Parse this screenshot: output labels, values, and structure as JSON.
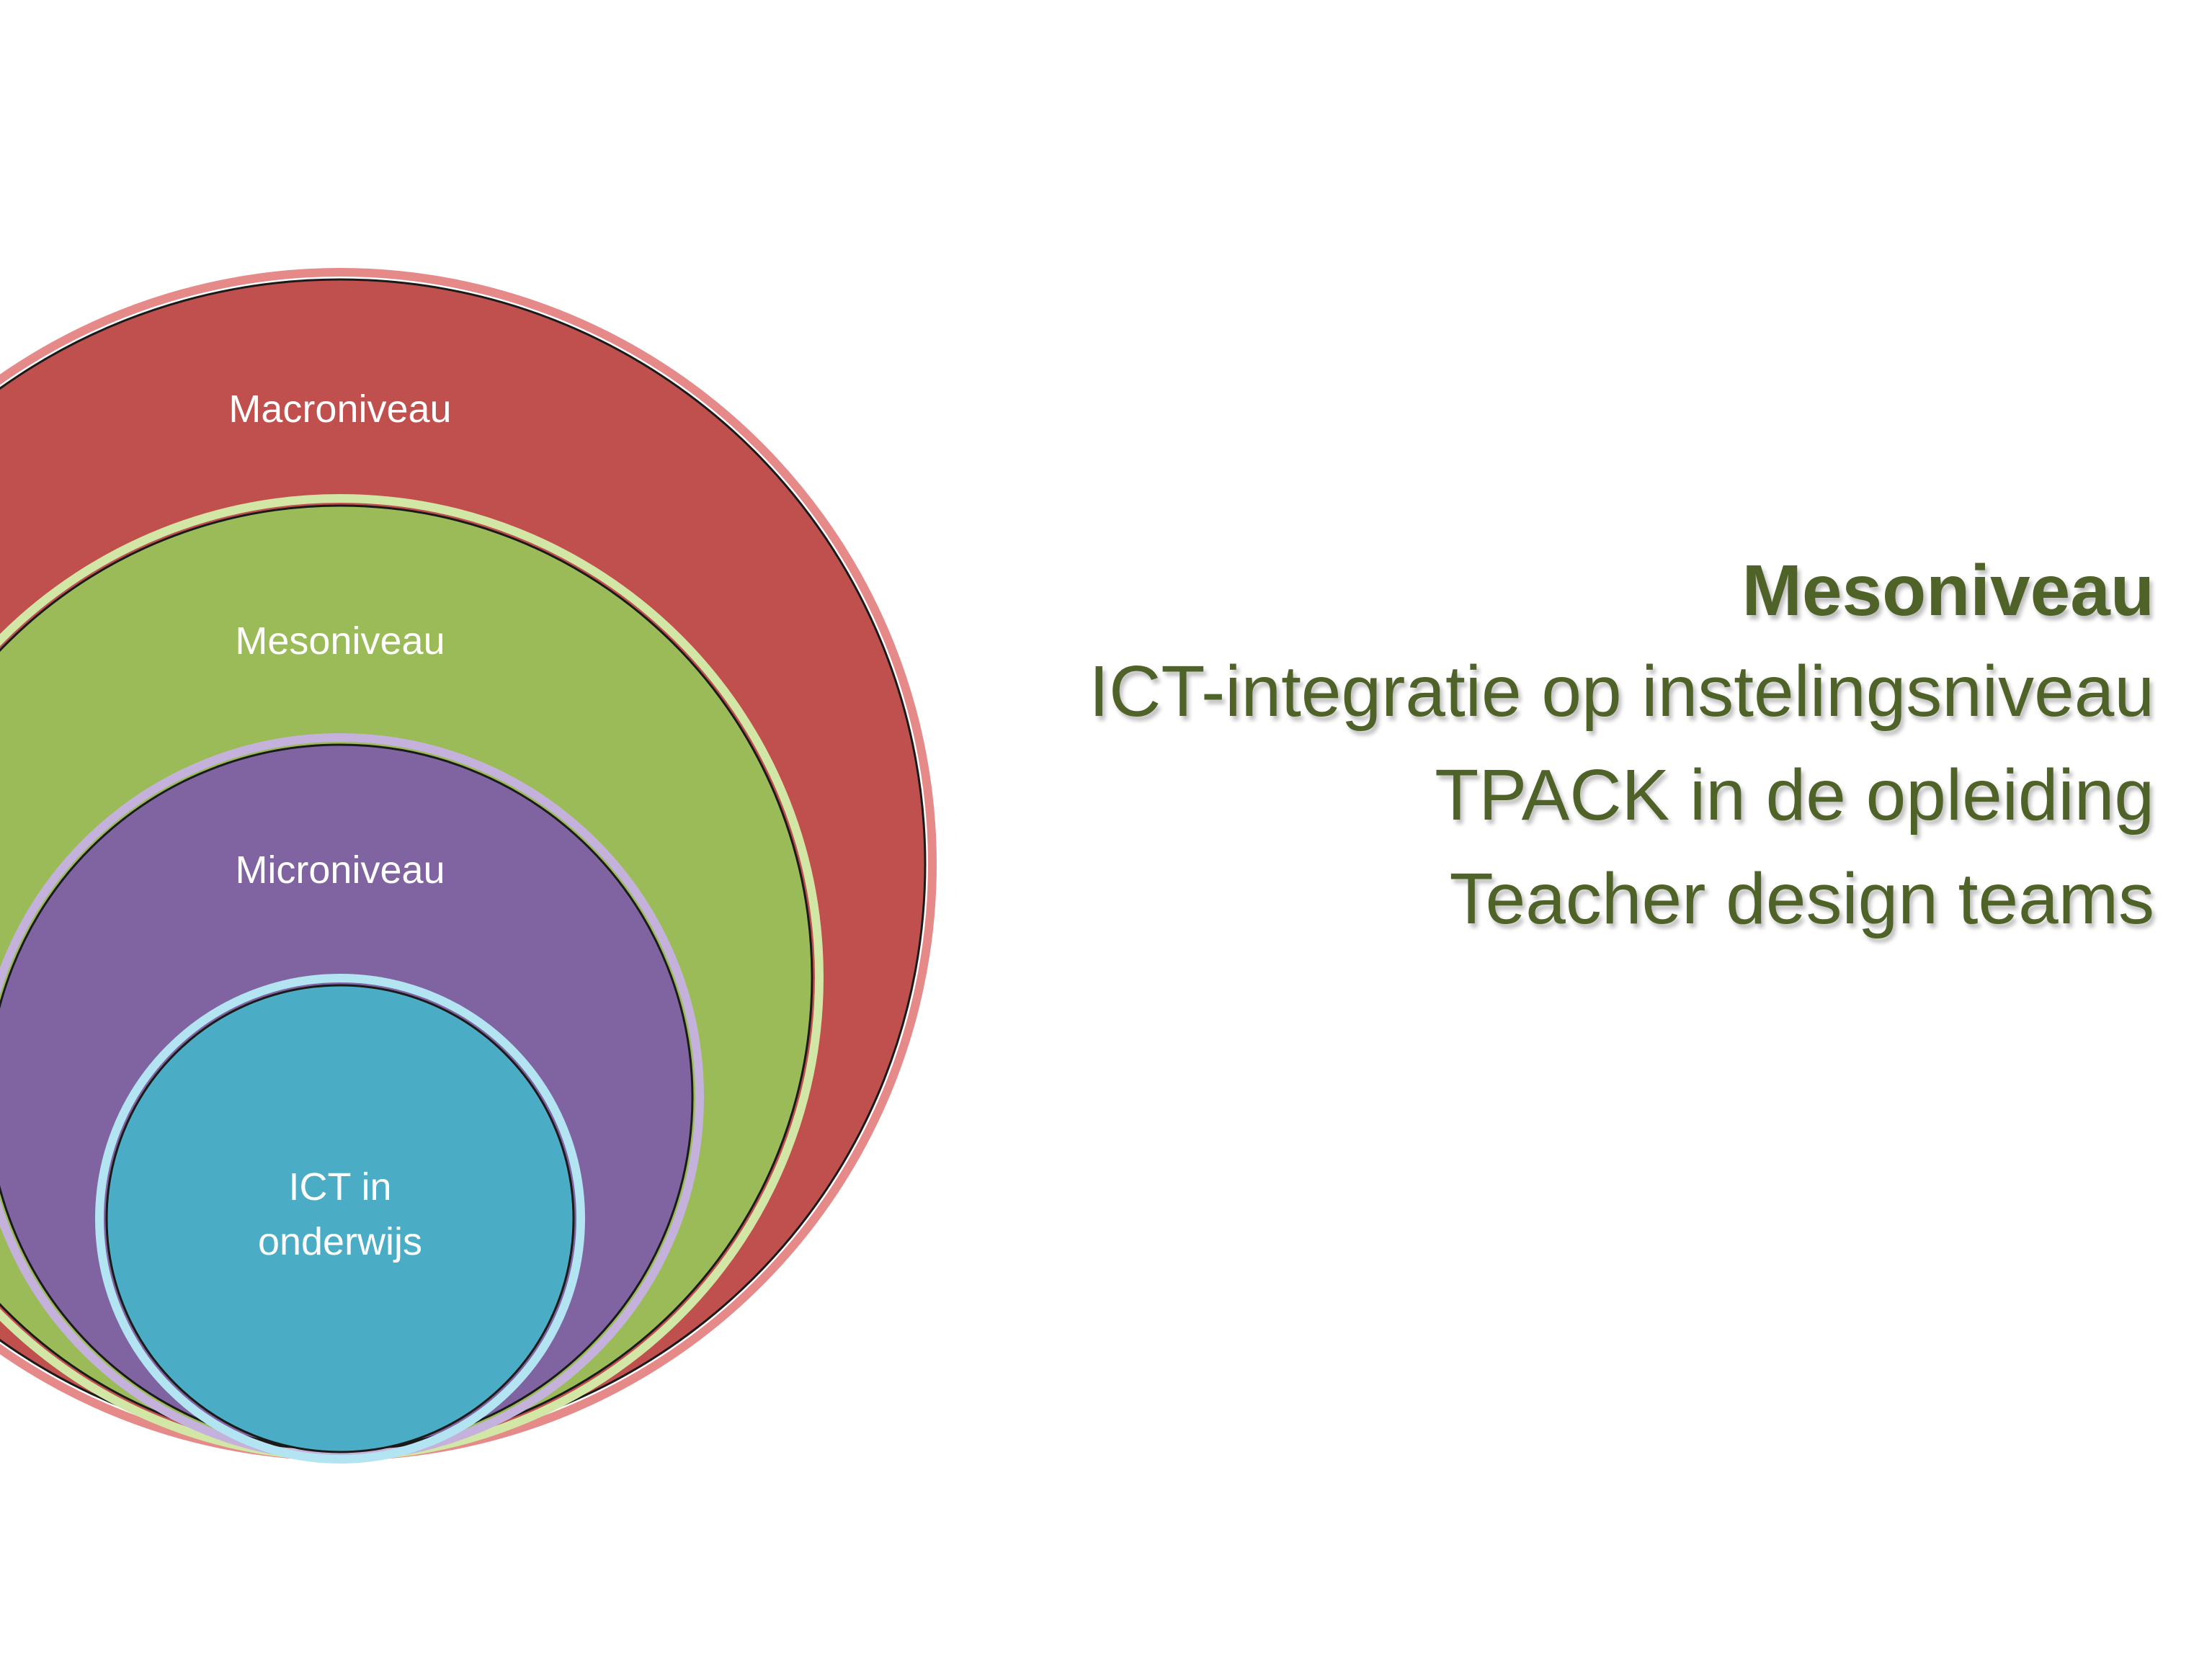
{
  "diagram": {
    "circles": [
      {
        "key": "macro",
        "label": "Macroniveau",
        "fill": "#c0504d",
        "rim": "#e58a88"
      },
      {
        "key": "meso",
        "label": "Mesoniveau",
        "fill": "#9bbb59",
        "rim": "#d2e6a6"
      },
      {
        "key": "micro",
        "label": "Microniveau",
        "fill": "#8064a2",
        "rim": "#c5b2dc"
      },
      {
        "key": "core",
        "label": "ICT in\nonderwijs",
        "fill": "#4bacc6",
        "rim": "#b3e4f2"
      }
    ]
  },
  "text": {
    "heading": "Mesoniveau",
    "lines": [
      "ICT-integratie op instelingsniveau",
      "TPACK in de opleiding",
      "Teacher design teams"
    ],
    "color": "#4f6228"
  }
}
